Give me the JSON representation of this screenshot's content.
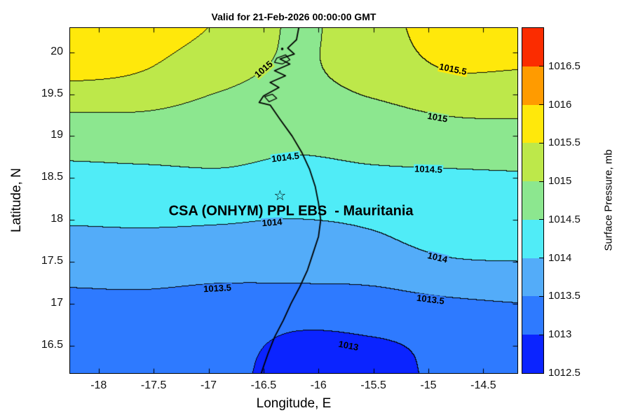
{
  "figure": {
    "title": "Valid for 21-Feb-2026 00:00:00 GMT",
    "xlabel": "Longitude, E",
    "ylabel": "Latitude, N",
    "annotation": {
      "text": "CSA (ONHYM) PPL EBS  - Mauritania",
      "lon": -16.25,
      "lat": 18.1
    },
    "star": {
      "glyph": "☆",
      "lon": -16.35,
      "lat": 18.28
    }
  },
  "chart_data": {
    "type": "heatmap",
    "subtype": "filled-contour-map",
    "title": "Valid for 21-Feb-2026 00:00:00 GMT",
    "xlabel": "Longitude, E",
    "ylabel": "Latitude, N",
    "x_range": [
      -18.26,
      -14.19
    ],
    "y_range": [
      16.17,
      20.29
    ],
    "x_ticks": [
      "-18",
      "-17.5",
      "-17",
      "-16.5",
      "-16",
      "-15.5",
      "-15",
      "-14.5"
    ],
    "y_ticks": [
      "16.5",
      "17",
      "17.5",
      "18",
      "18.5",
      "19",
      "19.5",
      "20"
    ],
    "contour_line_levels": [
      1013,
      1013.5,
      1014,
      1014.5,
      1015,
      1015.5
    ],
    "colorbar": {
      "label": "Surface Pressure, mb",
      "units": "mb",
      "range": [
        1012.5,
        1017
      ],
      "band_step": 0.5,
      "tick_labels": [
        "1012.5",
        "1013",
        "1013.5",
        "1014",
        "1014.5",
        "1015",
        "1015.5",
        "1016",
        "1016.5"
      ],
      "colors": [
        "#0b24ff",
        "#2e7aff",
        "#53acf9",
        "#50ecf7",
        "#8ce78f",
        "#bde84a",
        "#ffe80b",
        "#ff9b00",
        "#fb2c00"
      ]
    },
    "grid": {
      "lons": [
        -18.3,
        -17.6,
        -16.9,
        -16.2,
        -15.5,
        -14.8,
        -14.1
      ],
      "lats": [
        16.1,
        16.7,
        17.3,
        17.9,
        18.5,
        19.1,
        19.7,
        20.3
      ],
      "pressure_mb": [
        [
          1013.2,
          1013.15,
          1013.15,
          1012.78,
          1012.82,
          1013.1,
          1013.1
        ],
        [
          1013.3,
          1013.28,
          1013.2,
          1013.02,
          1013.06,
          1013.15,
          1013.25
        ],
        [
          1013.56,
          1013.58,
          1013.54,
          1013.55,
          1013.58,
          1013.75,
          1013.8
        ],
        [
          1013.98,
          1014.0,
          1013.97,
          1013.92,
          1014.02,
          1014.3,
          1014.35
        ],
        [
          1014.38,
          1014.4,
          1014.44,
          1014.38,
          1014.42,
          1014.44,
          1014.46
        ],
        [
          1014.78,
          1014.8,
          1014.7,
          1014.62,
          1014.72,
          1014.88,
          1014.92
        ],
        [
          1015.55,
          1015.45,
          1015.12,
          1014.92,
          1015.18,
          1015.45,
          1015.42
        ],
        [
          1015.85,
          1015.7,
          1015.45,
          1014.95,
          1015.3,
          1015.75,
          1015.9
        ]
      ]
    },
    "contour_labels": [
      {
        "text": "1015.5",
        "lon": -14.78,
        "lat": 19.8
      },
      {
        "text": "1015",
        "lon": -14.92,
        "lat": 19.22
      },
      {
        "text": "1015",
        "lon": -16.5,
        "lat": 19.8
      },
      {
        "text": "1014.5",
        "lon": -16.3,
        "lat": 18.74
      },
      {
        "text": "1014.5",
        "lon": -15.0,
        "lat": 18.6
      },
      {
        "text": "1014",
        "lon": -16.42,
        "lat": 17.97
      },
      {
        "text": "1014",
        "lon": -14.92,
        "lat": 17.55
      },
      {
        "text": "1013.5",
        "lon": -16.92,
        "lat": 17.18
      },
      {
        "text": "1013.5",
        "lon": -14.98,
        "lat": 17.05
      },
      {
        "text": "1013",
        "lon": -15.73,
        "lat": 16.5
      }
    ],
    "coastline": {
      "main": [
        [
          -16.18,
          20.29
        ],
        [
          -16.2,
          20.15
        ],
        [
          -16.28,
          20.05
        ],
        [
          -16.22,
          19.98
        ],
        [
          -16.35,
          19.92
        ],
        [
          -16.26,
          19.86
        ],
        [
          -16.4,
          19.78
        ],
        [
          -16.3,
          19.72
        ],
        [
          -16.44,
          19.64
        ],
        [
          -16.36,
          19.58
        ],
        [
          -16.5,
          19.48
        ],
        [
          -16.54,
          19.4
        ],
        [
          -16.44,
          19.37
        ],
        [
          -16.35,
          19.2
        ],
        [
          -16.24,
          19.0
        ],
        [
          -16.15,
          18.8
        ],
        [
          -16.08,
          18.6
        ],
        [
          -16.03,
          18.4
        ],
        [
          -16.0,
          18.2
        ],
        [
          -15.98,
          18.0
        ],
        [
          -16.0,
          17.8
        ],
        [
          -16.05,
          17.6
        ],
        [
          -16.1,
          17.4
        ],
        [
          -16.17,
          17.2
        ],
        [
          -16.25,
          17.0
        ],
        [
          -16.32,
          16.8
        ],
        [
          -16.4,
          16.6
        ],
        [
          -16.46,
          16.4
        ],
        [
          -16.5,
          16.25
        ],
        [
          -16.52,
          16.17
        ]
      ],
      "islands": [
        [
          [
            -16.38,
            19.93
          ],
          [
            -16.3,
            19.97
          ],
          [
            -16.26,
            19.91
          ],
          [
            -16.33,
            19.86
          ],
          [
            -16.4,
            19.88
          ]
        ],
        [
          [
            -16.49,
            19.47
          ],
          [
            -16.42,
            19.5
          ],
          [
            -16.38,
            19.45
          ],
          [
            -16.45,
            19.41
          ]
        ]
      ],
      "island_dot": [
        -16.33,
        20.04
      ]
    }
  }
}
